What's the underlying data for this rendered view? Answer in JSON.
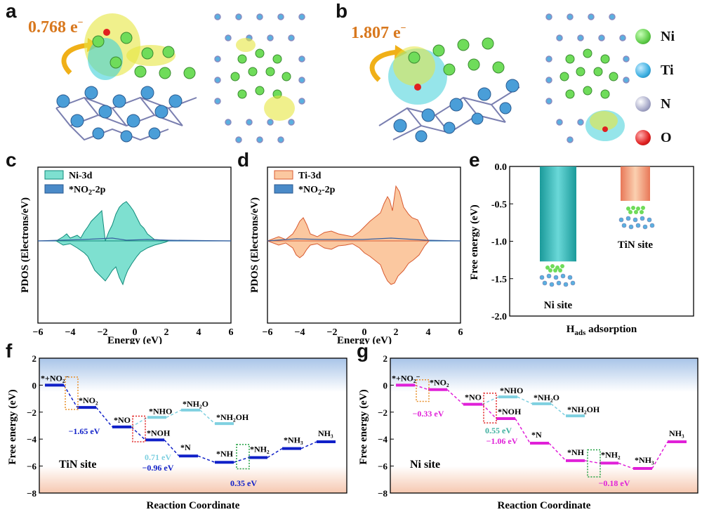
{
  "panels": {
    "a": {
      "letter": "a",
      "charge": "0.768 e",
      "charge_sup": "−"
    },
    "b": {
      "letter": "b",
      "charge": "1.807 e",
      "charge_sup": "−"
    },
    "c": {
      "letter": "c",
      "legend": [
        "Ni-3d",
        "*NO2-2p"
      ],
      "xlabel": "Energy (eV)",
      "ylabel": "PDOS (Electrons/eV)",
      "xticks": [
        "−6",
        "−4",
        "−2",
        "0",
        "2",
        "4",
        "6"
      ]
    },
    "d": {
      "letter": "d",
      "legend": [
        "Ti-3d",
        "*NO2-2p"
      ],
      "xlabel": "Energy (eV)",
      "ylabel": "PDOS (Electrons/eV)",
      "xticks": [
        "−6",
        "−4",
        "−2",
        "0",
        "2",
        "4",
        "6"
      ]
    },
    "e": {
      "letter": "e"
    },
    "f": {
      "letter": "f",
      "site": "TiN site"
    },
    "g": {
      "letter": "g",
      "site": "Ni site"
    }
  },
  "legend_atoms": [
    {
      "name": "Ni",
      "color": "#6fdc5a"
    },
    {
      "name": "Ti",
      "color": "#3aaee0"
    },
    {
      "name": "N",
      "color": "#a6a8c8"
    },
    {
      "name": "O",
      "color": "#e02020"
    }
  ],
  "chart_data": [
    {
      "id": "e",
      "type": "bar",
      "categories": [
        "Ni site",
        "TiN site"
      ],
      "values": [
        -1.27,
        -0.46
      ],
      "ylabel": "Free energy (eV)",
      "xlabel": "H",
      "xlabel_sub": "ads",
      "xlabel_rest": " adsorption",
      "ylim": [
        -2.0,
        0.0
      ],
      "yticks": [
        "0.0",
        "-0.5",
        "-1.0",
        "-1.5",
        "-2.0"
      ],
      "colors": [
        "#1aa3a3",
        "#f08a6a"
      ]
    },
    {
      "id": "f",
      "type": "line",
      "ylabel": "Free energy (eV)",
      "xlabel": "Reaction Coordinate",
      "ylim": [
        -8,
        2
      ],
      "yticks": [
        "2",
        "0",
        "−2",
        "−4",
        "−6",
        "−8"
      ],
      "main_color": "#1020c8",
      "side_color": "#7fd0e0",
      "main_path": [
        {
          "label": "*+NO₂⁻",
          "value": 0.0
        },
        {
          "label": "*NO₂",
          "value": -1.65
        },
        {
          "label": "*NO",
          "value": -3.1
        },
        {
          "label": "*NOH",
          "value": -4.06
        },
        {
          "label": "*N",
          "value": -5.25
        },
        {
          "label": "*NH",
          "value": -5.72
        },
        {
          "label": "*NH₂",
          "value": -5.37
        },
        {
          "label": "*NH₃",
          "value": -4.7
        },
        {
          "label": "NH₃",
          "value": -4.2
        }
      ],
      "side_path": [
        {
          "label": "*NHO",
          "value": -2.39
        },
        {
          "label": "*NH₂O",
          "value": -1.85
        },
        {
          "label": "*NH₂OH",
          "value": -2.85
        }
      ],
      "annotations": [
        {
          "text": "−1.65 eV",
          "color": "#1020c8"
        },
        {
          "text": "0.71 eV",
          "color": "#7fd0e0"
        },
        {
          "text": "−0.96 eV",
          "color": "#1020c8"
        },
        {
          "text": "0.35 eV",
          "color": "#1020c8"
        }
      ]
    },
    {
      "id": "g",
      "type": "line",
      "ylabel": "Free energy (eV)",
      "xlabel": "Reaction Coordinate",
      "ylim": [
        -8,
        2
      ],
      "yticks": [
        "2",
        "0",
        "−2",
        "−4",
        "−6",
        "−8"
      ],
      "main_color": "#e020d8",
      "side_color": "#7fd0e0",
      "main_path": [
        {
          "label": "*+NO₂⁻",
          "value": 0.0
        },
        {
          "label": "*NO₂",
          "value": -0.33
        },
        {
          "label": "*NO",
          "value": -1.42
        },
        {
          "label": "*NOH",
          "value": -2.48
        },
        {
          "label": "*N",
          "value": -4.3
        },
        {
          "label": "*NH",
          "value": -5.6
        },
        {
          "label": "*NH₂",
          "value": -5.78
        },
        {
          "label": "*NH₃",
          "value": -6.18
        },
        {
          "label": "NH₃",
          "value": -4.2
        }
      ],
      "side_path": [
        {
          "label": "*NHO",
          "value": -0.87
        },
        {
          "label": "*NH₂O",
          "value": -1.38
        },
        {
          "label": "*NH₂OH",
          "value": -2.28
        }
      ],
      "annotations": [
        {
          "text": "−0.33 eV",
          "color": "#e020d8"
        },
        {
          "text": "0.55 eV",
          "color": "#40b0a0"
        },
        {
          "text": "−1.06 eV",
          "color": "#e020d8"
        },
        {
          "text": "−0.18 eV",
          "color": "#e020d8"
        }
      ]
    }
  ]
}
